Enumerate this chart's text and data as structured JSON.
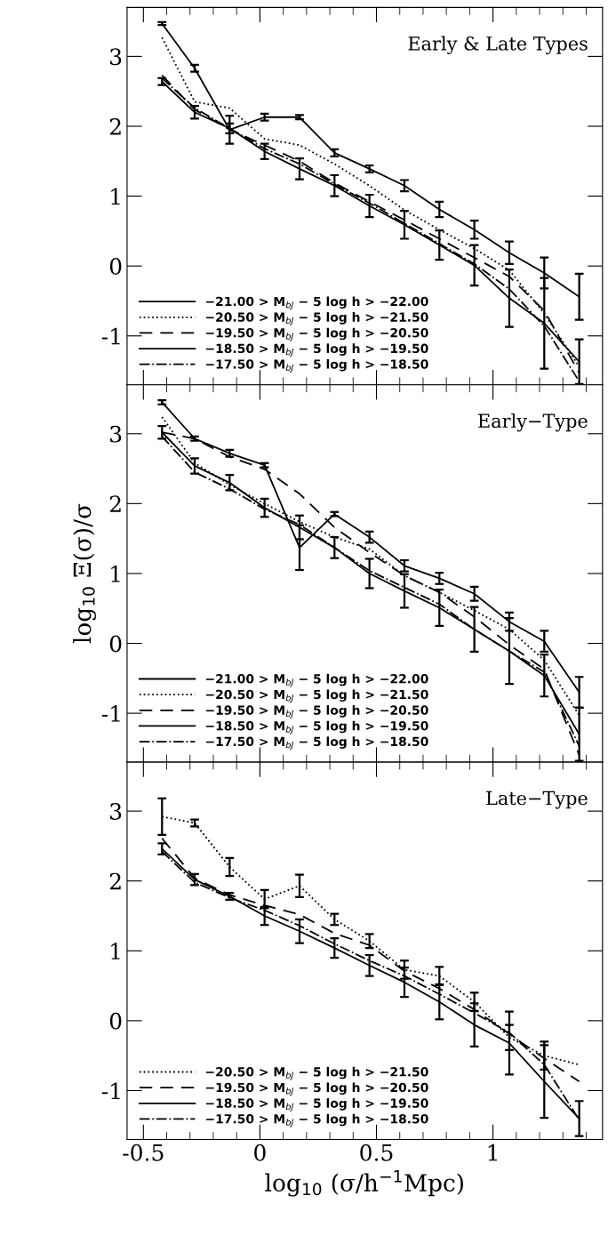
{
  "chart_data": [
    {
      "type": "line",
      "title": "Early & Late Types",
      "x": [
        -0.42,
        -0.28,
        -0.13,
        0.02,
        0.17,
        0.32,
        0.47,
        0.62,
        0.77,
        0.92,
        1.07,
        1.22,
        1.37
      ],
      "xlim": [
        -0.57,
        1.47
      ],
      "xticks": [
        -0.5,
        0,
        0.5,
        1
      ],
      "ylim": [
        -1.7,
        3.7
      ],
      "yticks": [
        -1,
        0,
        1,
        2,
        3
      ],
      "tick_labels": "y",
      "legend": "bottom left",
      "grid": false,
      "marker": "none",
      "series": [
        {
          "name": "−21.00 > M$_{bJ}$ − 5 log h > −22.00",
          "color": "#000000",
          "line_style": "solid",
          "values": [
            3.47,
            2.83,
            1.95,
            2.13,
            2.13,
            1.62,
            1.39,
            1.15,
            0.81,
            0.52,
            0.19,
            -0.1,
            -0.44
          ],
          "errors": [
            0.02,
            0.05,
            0.2,
            0.05,
            0.03,
            0.05,
            0.05,
            0.08,
            0.11,
            0.13,
            0.16,
            0.22,
            0.33
          ]
        },
        {
          "name": "−20.50 > M$_{bJ}$ − 5 log h > −21.50",
          "color": "#000000",
          "line_style": "dotted",
          "values": [
            3.27,
            2.35,
            2.26,
            1.82,
            1.73,
            1.46,
            1.15,
            0.8,
            0.52,
            0.25,
            -0.06,
            -0.68,
            -1.44
          ]
        },
        {
          "name": "−19.50 > M$_{bJ}$ − 5 log h > −20.50",
          "color": "#000000",
          "line_style": "dashed",
          "values": [
            2.73,
            2.24,
            1.95,
            1.73,
            1.5,
            1.19,
            0.92,
            0.66,
            0.39,
            0.12,
            -0.15,
            -0.64,
            -1.53
          ]
        },
        {
          "name": "−18.50 > M$_{bJ}$ − 5 log h > −19.50",
          "color": "#000000",
          "line_style": "solid",
          "values": [
            2.64,
            2.2,
            1.97,
            1.64,
            1.39,
            1.15,
            0.86,
            0.59,
            0.3,
            0.01,
            -0.46,
            -0.82,
            -1.37
          ],
          "errors": [
            0.05,
            0.09,
            0.07,
            0.11,
            0.15,
            0.15,
            0.16,
            0.2,
            0.21,
            0.29,
            0.41,
            0.65,
            0.32
          ]
        },
        {
          "name": "−17.50 > M$_{bJ}$ − 5 log h > −18.50",
          "color": "#000000",
          "line_style": "dashdot",
          "values": [
            2.69,
            2.26,
            1.97,
            1.68,
            1.46,
            1.17,
            0.9,
            0.61,
            0.32,
            0.03,
            -0.33,
            -0.86,
            -1.65
          ]
        }
      ]
    },
    {
      "type": "line",
      "title": "Early−Type",
      "ylabel": "log$_{10}$ Ξ(σ)/σ",
      "x": [
        -0.42,
        -0.28,
        -0.13,
        0.02,
        0.17,
        0.32,
        0.47,
        0.62,
        0.77,
        0.92,
        1.07,
        1.22,
        1.37
      ],
      "xlim": [
        -0.57,
        1.47
      ],
      "xticks": [
        -0.5,
        0,
        0.5,
        1
      ],
      "ylim": [
        -1.7,
        3.7
      ],
      "yticks": [
        -1,
        0,
        1,
        2,
        3
      ],
      "tick_labels": "y",
      "legend": "bottom left",
      "grid": false,
      "marker": "none",
      "series": [
        {
          "name": "−21.00 > M$_{bJ}$ − 5 log h > −22.00",
          "color": "#000000",
          "line_style": "solid",
          "values": [
            3.45,
            2.93,
            2.72,
            2.55,
            1.37,
            1.85,
            1.52,
            1.11,
            0.93,
            0.71,
            0.31,
            0.03,
            -0.7
          ],
          "errors": [
            0.03,
            0.03,
            0.05,
            0.03,
            0.32,
            0.03,
            0.08,
            0.08,
            0.08,
            0.1,
            0.13,
            0.15,
            0.22
          ]
        },
        {
          "name": "−20.50 > M$_{bJ}$ − 5 log h > −21.50",
          "color": "#000000",
          "line_style": "dotted",
          "values": [
            3.24,
            2.58,
            2.27,
            2.0,
            1.74,
            1.52,
            1.35,
            0.97,
            0.73,
            0.47,
            0.2,
            -0.24,
            -1.03
          ]
        },
        {
          "name": "−19.50 > M$_{bJ}$ − 5 log h > −20.50",
          "color": "#000000",
          "line_style": "dashed",
          "values": [
            3.02,
            2.93,
            2.67,
            2.49,
            2.14,
            1.66,
            1.3,
            0.97,
            0.73,
            0.38,
            -0.02,
            -0.37,
            -1.6
          ]
        },
        {
          "name": "−18.50 > M$_{bJ}$ − 5 log h > −19.50",
          "color": "#000000",
          "line_style": "solid",
          "values": [
            3.02,
            2.54,
            2.3,
            1.94,
            1.66,
            1.37,
            1.0,
            0.75,
            0.51,
            0.2,
            -0.11,
            -0.46,
            -1.3
          ],
          "errors": [
            0.09,
            0.11,
            0.11,
            0.13,
            0.17,
            0.15,
            0.21,
            0.24,
            0.26,
            0.32,
            0.47,
            0.3,
            0.38
          ]
        },
        {
          "name": "−17.50 > M$_{bJ}$ − 5 log h > −18.50",
          "color": "#000000",
          "line_style": "dashdot",
          "values": [
            2.96,
            2.45,
            2.21,
            1.92,
            1.7,
            1.37,
            1.04,
            0.8,
            0.56,
            0.2,
            -0.11,
            -0.41,
            -1.47
          ]
        }
      ]
    },
    {
      "type": "line",
      "title": "Late−Type",
      "xlabel": "log$_{10}$ (σ/h$^{−1}$Mpc)",
      "x": [
        -0.42,
        -0.28,
        -0.13,
        0.02,
        0.17,
        0.32,
        0.47,
        0.62,
        0.77,
        0.92,
        1.07,
        1.22,
        1.37
      ],
      "xlim": [
        -0.57,
        1.47
      ],
      "xticks": [
        -0.5,
        0,
        0.5,
        1
      ],
      "ylim": [
        -1.7,
        3.7
      ],
      "yticks": [
        -1,
        0,
        1,
        2,
        3
      ],
      "legend": "bottom left",
      "grid": false,
      "marker": "none",
      "series": [
        {
          "name": "−20.50 > M$_{bJ}$ − 5 log h > −21.50",
          "color": "#000000",
          "line_style": "dotted",
          "values": [
            2.92,
            2.83,
            2.2,
            1.74,
            1.93,
            1.45,
            1.14,
            0.73,
            0.64,
            0.27,
            -0.24,
            -0.5,
            -0.63
          ],
          "errors": [
            0.26,
            0.05,
            0.13,
            0.13,
            0.16,
            0.08,
            0.1,
            0.13,
            0.13,
            0.13,
            0.18,
            0.2,
            null
          ]
        },
        {
          "name": "−19.50 > M$_{bJ}$ − 5 log h > −20.50",
          "color": "#000000",
          "line_style": "dashed",
          "values": [
            2.61,
            2.04,
            1.8,
            1.65,
            1.52,
            1.25,
            1.08,
            0.71,
            0.46,
            0.16,
            -0.19,
            -0.54,
            -0.87
          ]
        },
        {
          "name": "−18.50 > M$_{bJ}$ − 5 log h > −19.50",
          "color": "#000000",
          "line_style": "solid",
          "values": [
            2.46,
            2.02,
            1.78,
            1.5,
            1.28,
            1.04,
            0.79,
            0.55,
            0.27,
            -0.06,
            -0.32,
            -0.87,
            -1.4
          ],
          "errors": [
            0.08,
            0.08,
            0.05,
            0.13,
            0.17,
            0.14,
            0.15,
            0.21,
            0.25,
            0.31,
            0.45,
            0.52,
            0.25
          ]
        },
        {
          "name": "−17.50 > M$_{bJ}$ − 5 log h > −18.50",
          "color": "#000000",
          "line_style": "dashdot",
          "values": [
            2.42,
            1.98,
            1.76,
            1.58,
            1.36,
            1.1,
            0.86,
            0.64,
            0.38,
            0.11,
            -0.17,
            -0.63,
            -1.42
          ]
        }
      ]
    }
  ]
}
